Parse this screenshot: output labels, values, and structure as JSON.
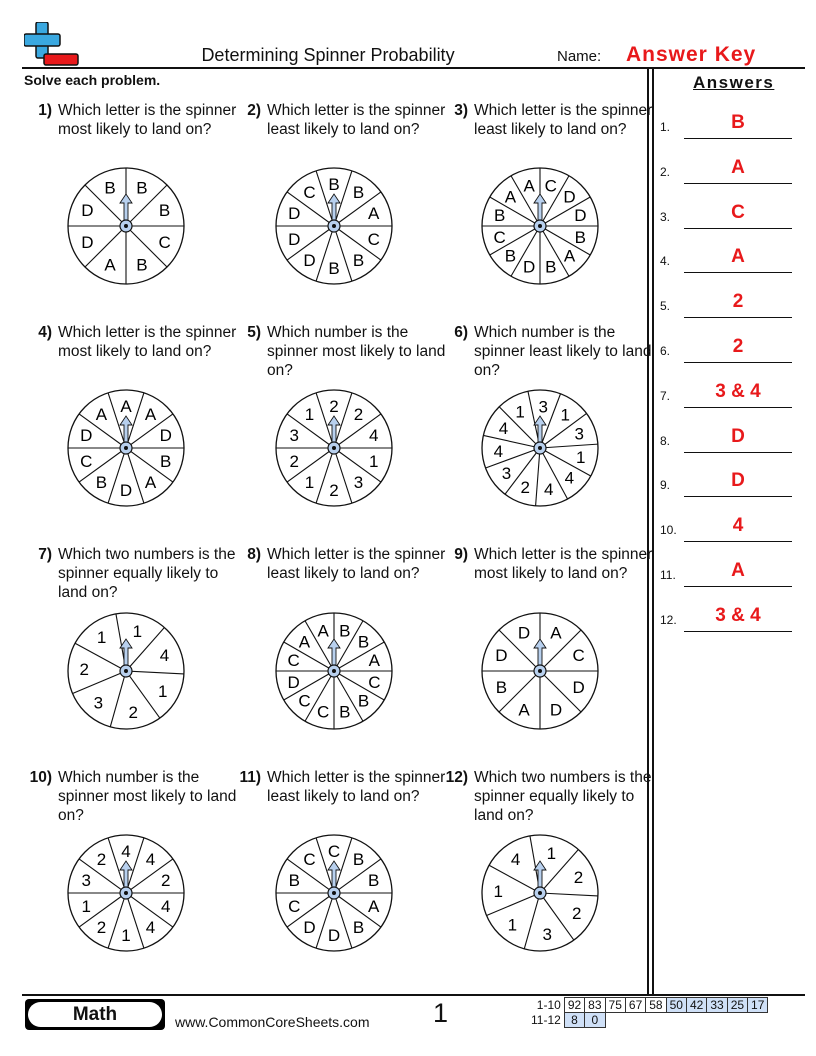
{
  "header": {
    "title": "Determining Spinner Probability",
    "name_label": "Name:",
    "answer_key": "Answer Key",
    "instructions": "Solve each problem.",
    "logo": "plus-minus-logo"
  },
  "answers_title": "Answers",
  "answers": [
    {
      "n": "1.",
      "v": "B"
    },
    {
      "n": "2.",
      "v": "A"
    },
    {
      "n": "3.",
      "v": "C"
    },
    {
      "n": "4.",
      "v": "A"
    },
    {
      "n": "5.",
      "v": "2"
    },
    {
      "n": "6.",
      "v": "2"
    },
    {
      "n": "7.",
      "v": "3 & 4"
    },
    {
      "n": "8.",
      "v": "D"
    },
    {
      "n": "9.",
      "v": "D"
    },
    {
      "n": "10.",
      "v": "4"
    },
    {
      "n": "11.",
      "v": "A"
    },
    {
      "n": "12.",
      "v": "3 & 4"
    }
  ],
  "problems": [
    {
      "n": "1)",
      "text": "Which letter is the spinner most likely to land on?",
      "labels": [
        "B",
        "B",
        "C",
        "B",
        "A",
        "D",
        "D",
        "B"
      ],
      "offset": 0
    },
    {
      "n": "2)",
      "text": "Which letter is the spinner least likely to land on?",
      "labels": [
        "B",
        "B",
        "A",
        "C",
        "B",
        "B",
        "D",
        "D",
        "D",
        "C"
      ],
      "offset": -18
    },
    {
      "n": "3)",
      "text": "Which letter is the spinner least likely to land on?",
      "labels": [
        "C",
        "D",
        "D",
        "B",
        "A",
        "B",
        "D",
        "B",
        "C",
        "B",
        "A",
        "A"
      ],
      "offset": 0
    },
    {
      "n": "4)",
      "text": "Which letter is the spinner most likely to land on?",
      "labels": [
        "A",
        "A",
        "D",
        "B",
        "A",
        "D",
        "B",
        "C",
        "D",
        "A"
      ],
      "offset": -18
    },
    {
      "n": "5)",
      "text": "Which number is the spinner most likely to land on?",
      "labels": [
        "2",
        "2",
        "4",
        "1",
        "3",
        "2",
        "1",
        "2",
        "3",
        "1"
      ],
      "offset": -18
    },
    {
      "n": "6)",
      "text": "Which number is the spinner least likely to land on?",
      "labels": [
        "3",
        "1",
        "3",
        "1",
        "4",
        "4",
        "2",
        "3",
        "4",
        "4",
        "1"
      ],
      "offset": -12
    },
    {
      "n": "7)",
      "text": "Which two numbers is the spinner equally likely to land on?",
      "labels": [
        "1",
        "4",
        "1",
        "2",
        "3",
        "2",
        "1"
      ],
      "offset": -10
    },
    {
      "n": "8)",
      "text": "Which letter is the spinner least likely to land on?",
      "labels": [
        "B",
        "B",
        "A",
        "C",
        "B",
        "B",
        "C",
        "C",
        "D",
        "C",
        "A",
        "A"
      ],
      "offset": 0
    },
    {
      "n": "9)",
      "text": "Which letter is the spinner most likely to land on?",
      "labels": [
        "A",
        "C",
        "D",
        "D",
        "A",
        "B",
        "D",
        "D"
      ],
      "offset": 0
    },
    {
      "n": "10)",
      "text": "Which number is the spinner most likely to land on?",
      "labels": [
        "4",
        "4",
        "2",
        "4",
        "4",
        "1",
        "2",
        "1",
        "3",
        "2"
      ],
      "offset": -18
    },
    {
      "n": "11)",
      "text": "Which letter is the spinner least likely to land on?",
      "labels": [
        "C",
        "B",
        "B",
        "A",
        "B",
        "D",
        "D",
        "C",
        "B",
        "C"
      ],
      "offset": -18
    },
    {
      "n": "12)",
      "text": "Which two numbers is the spinner equally likely to land on?",
      "labels": [
        "1",
        "2",
        "2",
        "3",
        "1",
        "1",
        "4"
      ],
      "offset": -10
    }
  ],
  "footer": {
    "subject": "Math",
    "site": "www.CommonCoreSheets.com",
    "page": "1",
    "score_rows": [
      {
        "label": "1-10",
        "cells": [
          "92",
          "83",
          "75",
          "67",
          "58",
          "50",
          "42",
          "33",
          "25",
          "17"
        ]
      },
      {
        "label": "11-12",
        "cells": [
          "8",
          "0"
        ]
      }
    ]
  },
  "colors": {
    "accent": "#e8191b",
    "arrow": "#b8d0ee",
    "score_highlight": "#cfe0f7",
    "logo_blue": "#3aa8e0"
  }
}
